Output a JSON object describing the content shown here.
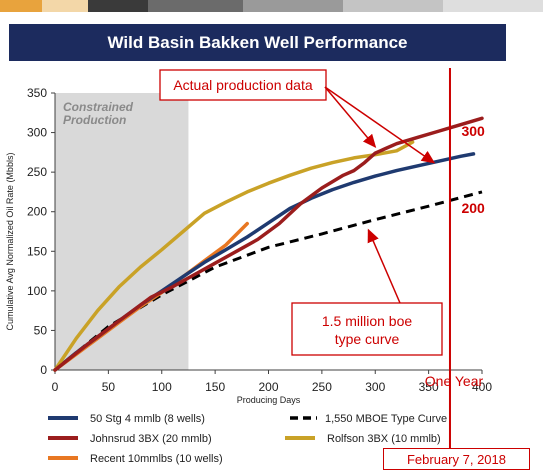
{
  "colors": {
    "title_bg": "#1c2b5e",
    "top_bar": [
      "#e8a33d",
      "#f3d7a8",
      "#3a3a3a",
      "#6b6b6b",
      "#9a9a9a",
      "#c4c4c4",
      "#dedede"
    ],
    "shade": "#d9d9d9",
    "annotation_red": "#cc0000"
  },
  "date_label": "February 7, 2018",
  "chart_data": {
    "type": "line",
    "title": "Wild Basin Bakken Well Performance",
    "xlabel": "Producing Days",
    "ylabel": "Cumulative Avg Normalized Oil Rate (Mbbls)",
    "xlim": [
      0,
      400
    ],
    "ylim": [
      0,
      350
    ],
    "xticks": [
      0,
      50,
      100,
      150,
      200,
      250,
      300,
      350,
      400
    ],
    "yticks": [
      0,
      50,
      100,
      150,
      200,
      250,
      300,
      350
    ],
    "grid": false,
    "legend_position": "bottom",
    "shaded_region": {
      "x": [
        0,
        125
      ],
      "label_line1": "Constrained",
      "label_line2": "Production"
    },
    "vertical_line": {
      "x": 370,
      "label": "One Year"
    },
    "value_labels": [
      {
        "text": "300",
        "x": 392,
        "y": 302
      },
      {
        "text": "200",
        "x": 392,
        "y": 205
      }
    ],
    "annotations": [
      {
        "id": "actual",
        "line1": "Actual production data",
        "line2": "",
        "arrow_targets": [
          [
            300,
            282
          ],
          [
            355,
            262
          ]
        ]
      },
      {
        "id": "type_curve",
        "line1": "1.5 million boe",
        "line2": "type curve",
        "arrow_targets": [
          [
            288,
            182
          ]
        ]
      }
    ],
    "series": [
      {
        "name": "50 Stg 4 mmlb (8 wells)",
        "color": "#1f3a70",
        "dash": false,
        "x": [
          0,
          20,
          40,
          60,
          80,
          100,
          120,
          140,
          160,
          180,
          200,
          220,
          240,
          260,
          280,
          300,
          320,
          340,
          360,
          380,
          392
        ],
        "y": [
          0,
          22,
          42,
          62,
          82,
          100,
          118,
          136,
          152,
          168,
          186,
          204,
          217,
          228,
          237,
          245,
          252,
          258,
          264,
          270,
          273
        ]
      },
      {
        "name": "1,550 MBOE Type Curve",
        "color": "#000000",
        "dash": true,
        "x": [
          0,
          50,
          100,
          150,
          200,
          250,
          300,
          350,
          400
        ],
        "y": [
          0,
          55,
          95,
          130,
          155,
          172,
          190,
          207,
          225
        ]
      },
      {
        "name": "Johnsrud 3BX (20 mmlb)",
        "color": "#9b1d1d",
        "dash": false,
        "x": [
          0,
          30,
          60,
          90,
          110,
          130,
          150,
          170,
          190,
          210,
          230,
          250,
          260,
          270,
          280,
          290,
          300,
          310,
          320,
          340,
          360,
          380,
          400
        ],
        "y": [
          0,
          32,
          62,
          92,
          105,
          120,
          135,
          150,
          165,
          185,
          210,
          230,
          238,
          246,
          252,
          262,
          274,
          280,
          286,
          294,
          302,
          310,
          318
        ]
      },
      {
        "name": "Rolfson 3BX (10 mmlb)",
        "color": "#c9a227",
        "dash": false,
        "x": [
          0,
          20,
          40,
          60,
          80,
          100,
          120,
          140,
          160,
          180,
          200,
          220,
          240,
          260,
          280,
          300,
          320,
          335
        ],
        "y": [
          0,
          40,
          75,
          105,
          130,
          152,
          175,
          198,
          212,
          225,
          236,
          246,
          255,
          262,
          268,
          272,
          277,
          288
        ]
      },
      {
        "name": "Recent 10mmlbs (10 wells)",
        "color": "#e87722",
        "dash": false,
        "x": [
          0,
          20,
          40,
          60,
          80,
          100,
          120,
          140,
          160,
          180
        ],
        "y": [
          0,
          20,
          40,
          60,
          80,
          98,
          118,
          138,
          158,
          185
        ]
      }
    ],
    "legend_order": [
      0,
      1,
      2,
      3,
      4
    ]
  }
}
